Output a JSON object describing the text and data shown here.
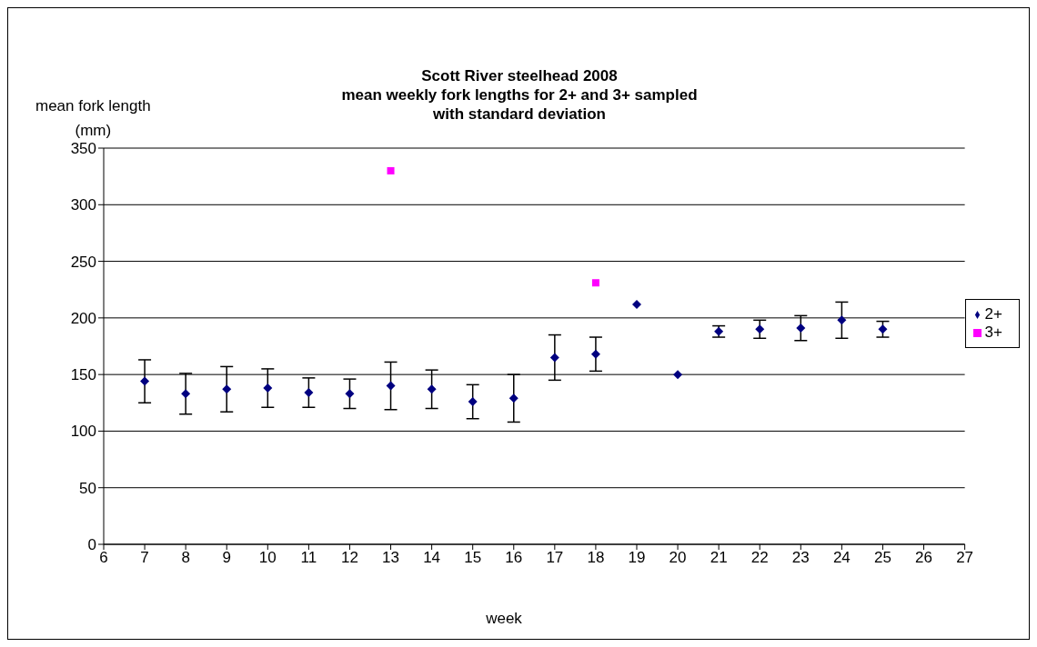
{
  "chart_data": {
    "type": "scatter",
    "title": "Scott River steelhead 2008\nmean weekly fork lengths for 2+ and 3+ sampled\nwith standard deviation",
    "xlabel": "week",
    "ylabel": "mean fork length\n(mm)",
    "xlim": [
      6,
      27
    ],
    "xticks": [
      6,
      7,
      8,
      9,
      10,
      11,
      12,
      13,
      14,
      15,
      16,
      17,
      18,
      19,
      20,
      21,
      22,
      23,
      24,
      25,
      26,
      27
    ],
    "ylim": [
      0,
      350
    ],
    "yticks": [
      0,
      50,
      100,
      150,
      200,
      250,
      300,
      350
    ],
    "grid": "y",
    "legend": "right",
    "series": [
      {
        "name": "2+",
        "color": "#000080",
        "marker": "diamond",
        "x": [
          7,
          8,
          9,
          10,
          11,
          12,
          13,
          14,
          15,
          16,
          17,
          18,
          19,
          20,
          21,
          22,
          23,
          24,
          25
        ],
        "values": [
          144,
          133,
          137,
          138,
          134,
          133,
          140,
          137,
          126,
          129,
          165,
          168,
          212,
          150,
          188,
          190,
          191,
          198,
          190
        ],
        "errors": [
          19,
          18,
          20,
          17,
          13,
          13,
          21,
          17,
          15,
          21,
          20,
          15,
          null,
          null,
          5,
          8,
          11,
          16,
          7
        ]
      },
      {
        "name": "3+",
        "color": "#ff00ff",
        "marker": "square",
        "x": [
          13,
          18
        ],
        "values": [
          330,
          231
        ]
      }
    ]
  }
}
